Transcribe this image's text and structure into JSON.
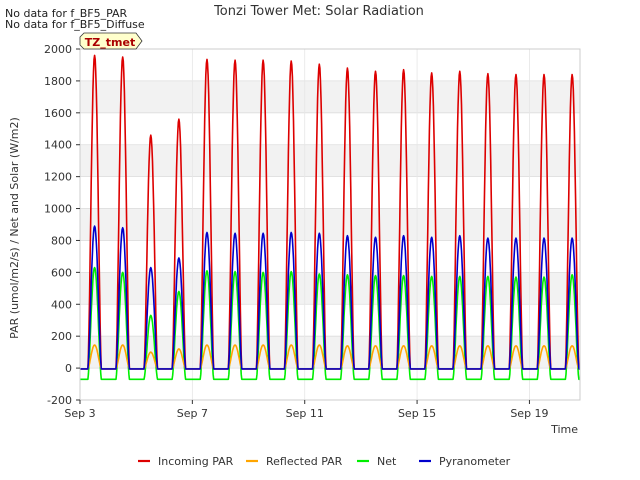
{
  "chart_data": {
    "type": "line",
    "title": "Tonzi Tower Met: Solar Radiation",
    "xlabel": "Time",
    "ylabel": "PAR (umol/m2/s) / Net and Solar (W/m2)",
    "ylim": [
      -200,
      2000
    ],
    "yticks": [
      -200,
      0,
      200,
      400,
      600,
      800,
      1000,
      1200,
      1400,
      1600,
      1800,
      2000
    ],
    "xlim_days": [
      3,
      20.8
    ],
    "xtick_labels": [
      "Sep 3",
      "Sep 7",
      "Sep 11",
      "Sep 15",
      "Sep 19"
    ],
    "xtick_days": [
      3,
      7,
      11,
      15,
      19
    ],
    "grid": true,
    "legend_position": "bottom",
    "notes": [
      "No data for f_BF5_PAR",
      "No data for f_BF5_Diffuse"
    ],
    "tag_label": "TZ_tmet",
    "series": [
      {
        "name": "Incoming PAR",
        "color": "#dd0000",
        "day_of_month": [
          3,
          4,
          5,
          6,
          7,
          8,
          9,
          10,
          11,
          12,
          13,
          14,
          15,
          16,
          17,
          18,
          19,
          20
        ],
        "peaks": [
          1960,
          1950,
          1460,
          1560,
          1935,
          1930,
          1930,
          1925,
          1905,
          1880,
          1860,
          1870,
          1850,
          1860,
          1845,
          1840,
          1840,
          1840
        ]
      },
      {
        "name": "Reflected PAR",
        "color": "#ffa500",
        "day_of_month": [
          3,
          4,
          5,
          6,
          7,
          8,
          9,
          10,
          11,
          12,
          13,
          14,
          15,
          16,
          17,
          18,
          19,
          20
        ],
        "peaks": [
          145,
          145,
          100,
          120,
          145,
          145,
          145,
          145,
          145,
          140,
          140,
          140,
          140,
          140,
          140,
          140,
          140,
          140
        ]
      },
      {
        "name": "Net",
        "color": "#00ee00",
        "day_of_month": [
          3,
          4,
          5,
          6,
          7,
          8,
          9,
          10,
          11,
          12,
          13,
          14,
          15,
          16,
          17,
          18,
          19,
          20
        ],
        "peaks": [
          630,
          600,
          330,
          480,
          610,
          605,
          600,
          605,
          590,
          585,
          580,
          580,
          575,
          575,
          575,
          570,
          570,
          585
        ],
        "night_value": -70
      },
      {
        "name": "Pyranometer",
        "color": "#0000cc",
        "day_of_month": [
          3,
          4,
          5,
          6,
          7,
          8,
          9,
          10,
          11,
          12,
          13,
          14,
          15,
          16,
          17,
          18,
          19,
          20
        ],
        "peaks": [
          890,
          880,
          630,
          690,
          850,
          845,
          845,
          850,
          845,
          830,
          820,
          830,
          820,
          830,
          815,
          815,
          815,
          815
        ]
      }
    ]
  }
}
